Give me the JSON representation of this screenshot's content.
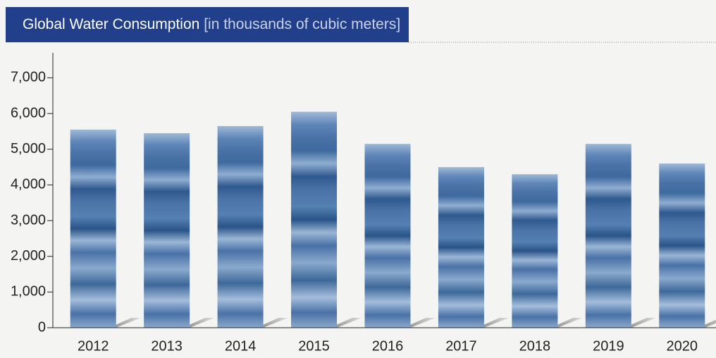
{
  "chart_data": {
    "type": "bar",
    "title": "Global Water Consumption",
    "subtitle": "[in thousands of cubic meters]",
    "categories": [
      "2012",
      "2013",
      "2014",
      "2015",
      "2016",
      "2017",
      "2018",
      "2019",
      "2020"
    ],
    "values": [
      5550,
      5450,
      5650,
      6050,
      5150,
      4500,
      4300,
      5150,
      4600
    ],
    "color": "#4a72a6",
    "ylim": [
      0,
      7700
    ],
    "yticks": [
      0,
      {
        "value": 1000,
        "label": "1,000"
      },
      {
        "value": 2000,
        "label": "2,000"
      },
      {
        "value": 3000,
        "label": "3,000"
      },
      {
        "value": 4000,
        "label": "4,000"
      },
      {
        "value": 5000,
        "label": "5,000"
      },
      {
        "value": 6000,
        "label": "6,000"
      },
      {
        "value": 7000,
        "label": "7,000"
      }
    ],
    "grid": false
  }
}
